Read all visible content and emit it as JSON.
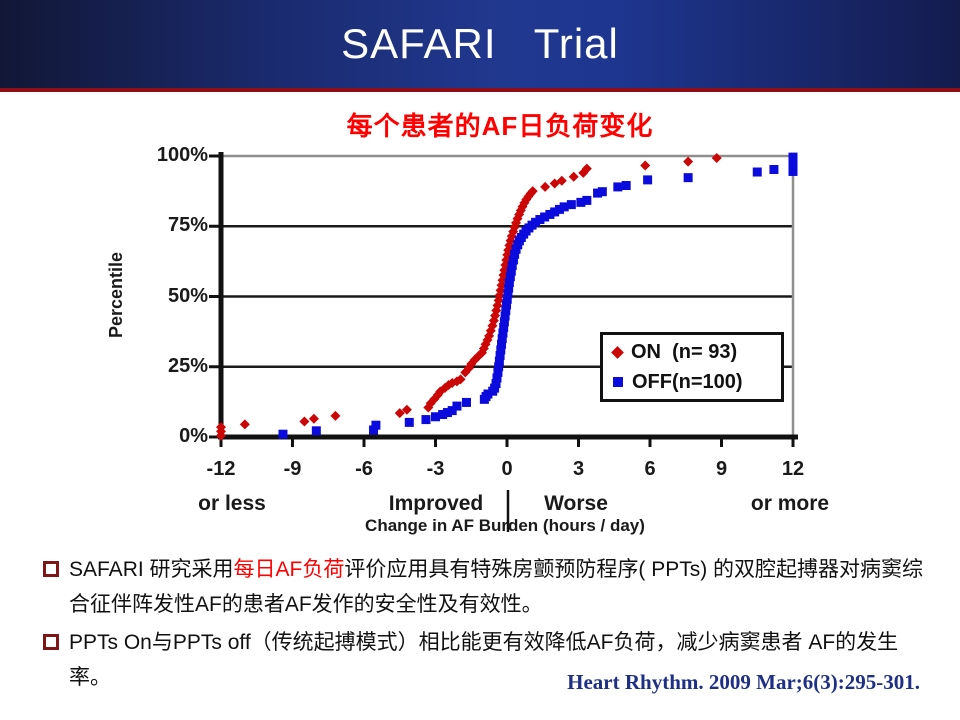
{
  "header": {
    "title": "SAFARI   Trial",
    "divider_color": "#8e1016"
  },
  "chart_data": {
    "type": "scatter",
    "title": "每个患者的AF日负荷变化",
    "title_color": "#ff0000",
    "ylabel": "Percentile",
    "xlabel": "Change in AF Burden (hours / day)",
    "xlim": [
      -12,
      12
    ],
    "ylim": [
      0,
      100
    ],
    "grid": "horizontal",
    "legend_position": "inside-right",
    "x_ticks": {
      "values": [
        -12,
        -9,
        -6,
        -3,
        0,
        3,
        6,
        9,
        12
      ],
      "labels": [
        "-12",
        "-9",
        "-6",
        "-3",
        "0",
        "3",
        "6",
        "9",
        "12"
      ]
    },
    "y_ticks": {
      "values": [
        100,
        75,
        50,
        25,
        0
      ],
      "labels": [
        "100%",
        "75%",
        "50%",
        "25%",
        "0%"
      ]
    },
    "x_captions": {
      "left": "or less",
      "improved": "Improved",
      "worse": "Worse",
      "right": "or more"
    },
    "series": [
      {
        "name": "ON  (n= 93)",
        "marker": "diamond",
        "color": "#cc0505",
        "points": [
          [
            -12,
            0.5
          ],
          [
            -12,
            2
          ],
          [
            -12,
            3.5
          ],
          [
            -11,
            4.5
          ],
          [
            -8.5,
            5.5
          ],
          [
            -8.1,
            6.5
          ],
          [
            -7.2,
            7.5
          ],
          [
            -4.5,
            8.5
          ],
          [
            -4.2,
            9.7
          ],
          [
            -3.3,
            10.5
          ],
          [
            -3.2,
            12
          ],
          [
            -3.05,
            13.5
          ],
          [
            -2.9,
            15
          ],
          [
            -2.8,
            16.2
          ],
          [
            -2.6,
            17.5
          ],
          [
            -2.45,
            18.5
          ],
          [
            -2.3,
            19.2
          ],
          [
            -2.1,
            19.8
          ],
          [
            -1.95,
            20.5
          ],
          [
            -1.75,
            23
          ],
          [
            -1.6,
            24.5
          ],
          [
            -1.5,
            26
          ],
          [
            -1.35,
            27.5
          ],
          [
            -1.2,
            28.8
          ],
          [
            -1.05,
            30
          ],
          [
            -0.97,
            31.5
          ],
          [
            -0.9,
            33
          ],
          [
            -0.82,
            34.5
          ],
          [
            -0.75,
            36
          ],
          [
            -0.68,
            37.8
          ],
          [
            -0.61,
            39.6
          ],
          [
            -0.55,
            41.4
          ],
          [
            -0.5,
            43.2
          ],
          [
            -0.45,
            45
          ],
          [
            -0.4,
            46.8
          ],
          [
            -0.35,
            48.6
          ],
          [
            -0.31,
            50.4
          ],
          [
            -0.27,
            52.2
          ],
          [
            -0.23,
            54
          ],
          [
            -0.19,
            55.8
          ],
          [
            -0.15,
            57.6
          ],
          [
            -0.11,
            59.4
          ],
          [
            -0.07,
            61.2
          ],
          [
            -0.03,
            63
          ],
          [
            0.01,
            64.8
          ],
          [
            0.05,
            66.5
          ],
          [
            0.1,
            68.2
          ],
          [
            0.15,
            69.9
          ],
          [
            0.2,
            71.5
          ],
          [
            0.26,
            73.1
          ],
          [
            0.32,
            74.7
          ],
          [
            0.38,
            76.2
          ],
          [
            0.44,
            77.7
          ],
          [
            0.51,
            79.2
          ],
          [
            0.58,
            80.6
          ],
          [
            0.65,
            82
          ],
          [
            0.73,
            83.3
          ],
          [
            0.81,
            84.5
          ],
          [
            0.9,
            85.6
          ],
          [
            0.99,
            86.6
          ],
          [
            1.08,
            87.5
          ],
          [
            1.6,
            89
          ],
          [
            2,
            90.2
          ],
          [
            2.3,
            91.2
          ],
          [
            2.8,
            92.6
          ],
          [
            3.2,
            94
          ],
          [
            3.35,
            95.5
          ],
          [
            5.8,
            96.6
          ],
          [
            7.6,
            98
          ],
          [
            8.8,
            99.3
          ]
        ]
      },
      {
        "name": "OFF(n=100)",
        "marker": "square",
        "color": "#0b0bdd",
        "points": [
          [
            -9.4,
            1
          ],
          [
            -8,
            2.2
          ],
          [
            -5.6,
            2.5
          ],
          [
            -5.5,
            4.2
          ],
          [
            -4.1,
            5.2
          ],
          [
            -3.4,
            6.2
          ],
          [
            -3,
            7.2
          ],
          [
            -2.7,
            8
          ],
          [
            -2.5,
            8.7
          ],
          [
            -2.3,
            9.4
          ],
          [
            -2.1,
            11
          ],
          [
            -1.7,
            12.3
          ],
          [
            -0.95,
            13.4
          ],
          [
            -0.88,
            14.4
          ],
          [
            -0.8,
            15.3
          ],
          [
            -0.6,
            16.3
          ],
          [
            -0.52,
            17.4
          ],
          [
            -0.46,
            19
          ],
          [
            -0.42,
            21
          ],
          [
            -0.38,
            23
          ],
          [
            -0.35,
            25
          ],
          [
            -0.32,
            27
          ],
          [
            -0.29,
            29
          ],
          [
            -0.26,
            31
          ],
          [
            -0.23,
            33
          ],
          [
            -0.2,
            35
          ],
          [
            -0.17,
            37
          ],
          [
            -0.14,
            39
          ],
          [
            -0.11,
            41
          ],
          [
            -0.08,
            43
          ],
          [
            -0.05,
            45
          ],
          [
            -0.02,
            47
          ],
          [
            0.01,
            49
          ],
          [
            0.04,
            51
          ],
          [
            0.07,
            53
          ],
          [
            0.1,
            55
          ],
          [
            0.14,
            57
          ],
          [
            0.18,
            59
          ],
          [
            0.22,
            61
          ],
          [
            0.27,
            63
          ],
          [
            0.32,
            65
          ],
          [
            0.38,
            66.8
          ],
          [
            0.45,
            68.4
          ],
          [
            0.52,
            69.8
          ],
          [
            0.6,
            71
          ],
          [
            0.7,
            72.2
          ],
          [
            0.8,
            73.3
          ],
          [
            0.92,
            74.4
          ],
          [
            1.05,
            75.4
          ],
          [
            1.2,
            76.4
          ],
          [
            1.38,
            77.4
          ],
          [
            1.58,
            78.3
          ],
          [
            1.8,
            79.2
          ],
          [
            2,
            80.1
          ],
          [
            2.2,
            81
          ],
          [
            2.4,
            81.9
          ],
          [
            2.7,
            82.7
          ],
          [
            3.1,
            83.5
          ],
          [
            3.35,
            84.2
          ],
          [
            3.8,
            86.8
          ],
          [
            4,
            87.3
          ],
          [
            4.65,
            89
          ],
          [
            5,
            89.5
          ],
          [
            5.9,
            91.5
          ],
          [
            7.6,
            92.3
          ],
          [
            10.5,
            94.3
          ],
          [
            11.2,
            95.2
          ],
          [
            12,
            94.5
          ],
          [
            12,
            95.8
          ],
          [
            12,
            97.1
          ],
          [
            12,
            98.4
          ],
          [
            12,
            99.6
          ]
        ]
      }
    ]
  },
  "bullets": [
    {
      "segments": [
        {
          "text": "SAFARI 研究采用",
          "color": "#111111"
        },
        {
          "text": "每日AF负荷",
          "color": "#ff0000"
        },
        {
          "text": "评价应用具有特殊房颤预防程序( PPTs) 的双腔起搏器对病窦综合征伴阵发性AF的患者AF发作的安全性及有效性。",
          "color": "#111111"
        }
      ]
    },
    {
      "segments": [
        {
          "text": "PPTs On与PPTs off（传统起搏模式）相比能更有效降低AF负荷，减少病窦患者 AF的发生率。",
          "color": "#111111"
        }
      ]
    }
  ],
  "citation": {
    "text": "Heart Rhythm. 2009 Mar;6(3):295-301.",
    "color": "#1e2f85"
  }
}
